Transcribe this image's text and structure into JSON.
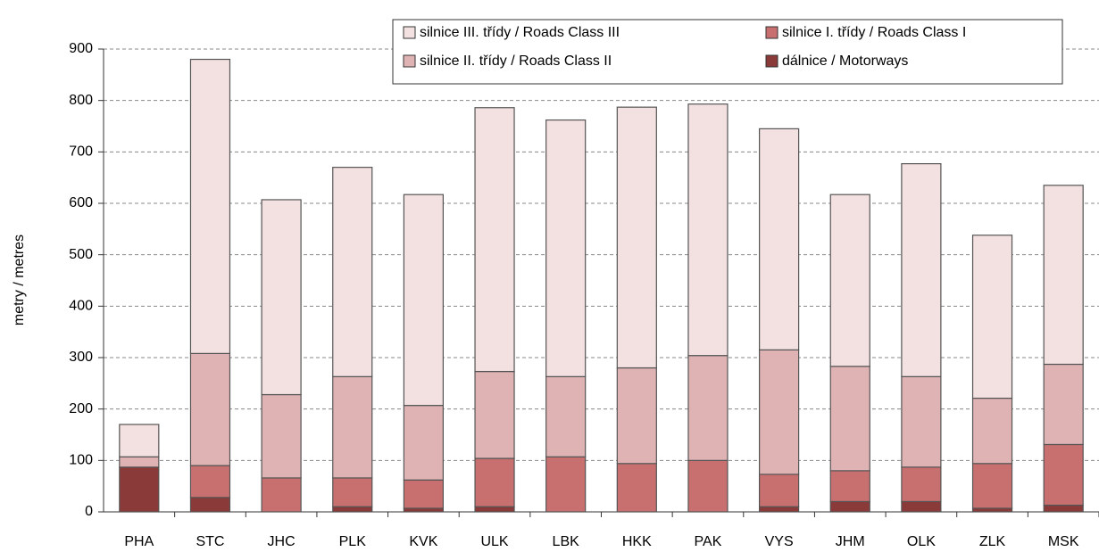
{
  "chart_data": {
    "type": "stacked_bar",
    "y_label": "metry / metres",
    "categories": [
      "PHA",
      "STC",
      "JHC",
      "PLK",
      "KVK",
      "ULK",
      "LBK",
      "HKK",
      "PAK",
      "VYS",
      "JHM",
      "OLK",
      "ZLK",
      "MSK"
    ],
    "series": [
      {
        "name": "dálnice / Motorways",
        "color": "#8b3a3a",
        "values": [
          87,
          28,
          0,
          10,
          7,
          10,
          0,
          0,
          0,
          10,
          20,
          20,
          7,
          13
        ]
      },
      {
        "name": "silnice I. třídy / Roads Class I",
        "color": "#c87070",
        "values": [
          0,
          62,
          66,
          56,
          55,
          94,
          107,
          94,
          100,
          63,
          60,
          67,
          87,
          118
        ]
      },
      {
        "name": "silnice II. třídy / Roads Class II",
        "color": "#dfb3b3",
        "values": [
          20,
          218,
          162,
          197,
          145,
          169,
          156,
          186,
          204,
          242,
          203,
          176,
          127,
          156
        ]
      },
      {
        "name": "silnice III. třídy / Roads Class III",
        "color": "#f3e0e0",
        "values": [
          63,
          572,
          379,
          407,
          410,
          513,
          499,
          507,
          489,
          430,
          334,
          414,
          317,
          348
        ]
      }
    ],
    "ylim": [
      0,
      900
    ],
    "yticks": [
      0,
      100,
      200,
      300,
      400,
      500,
      600,
      700,
      800,
      900
    ],
    "grid": true
  }
}
